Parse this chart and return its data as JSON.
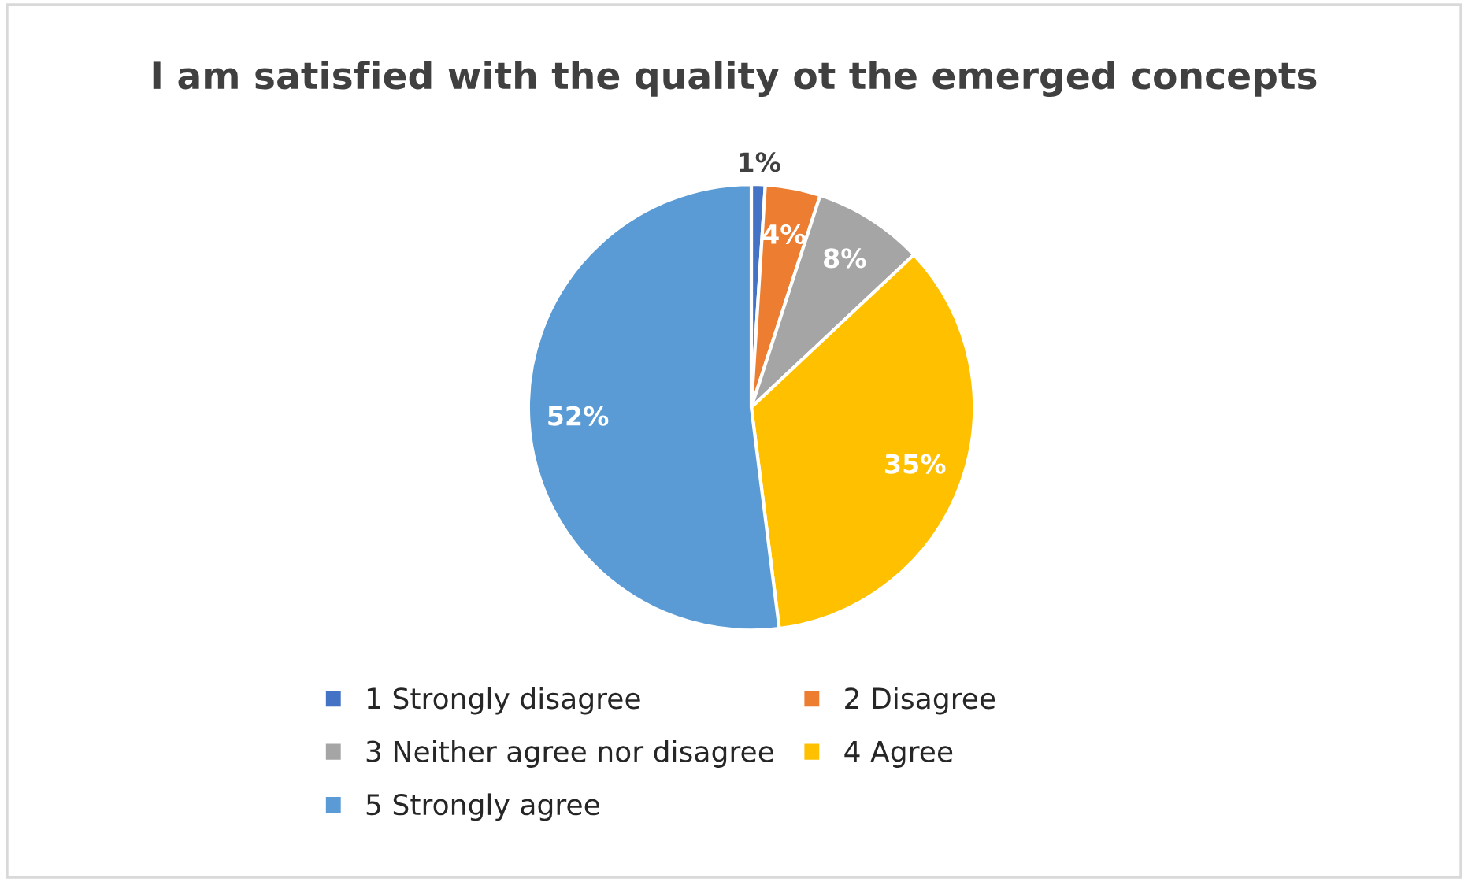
{
  "chart_data": {
    "type": "pie",
    "title": "I am satisfied with the quality ot the emerged concepts",
    "categories": [
      "1 Strongly disagree",
      "2 Disagree",
      "3 Neither agree nor disagree",
      "4 Agree",
      "5 Strongly agree"
    ],
    "values": [
      1,
      4,
      8,
      35,
      52
    ],
    "colors": [
      "#4472c4",
      "#ed7d31",
      "#a5a5a5",
      "#ffc000",
      "#5b9bd5"
    ],
    "value_labels": [
      "1%",
      "4%",
      "8%",
      "35%",
      "52%"
    ],
    "legend": "bottom"
  }
}
